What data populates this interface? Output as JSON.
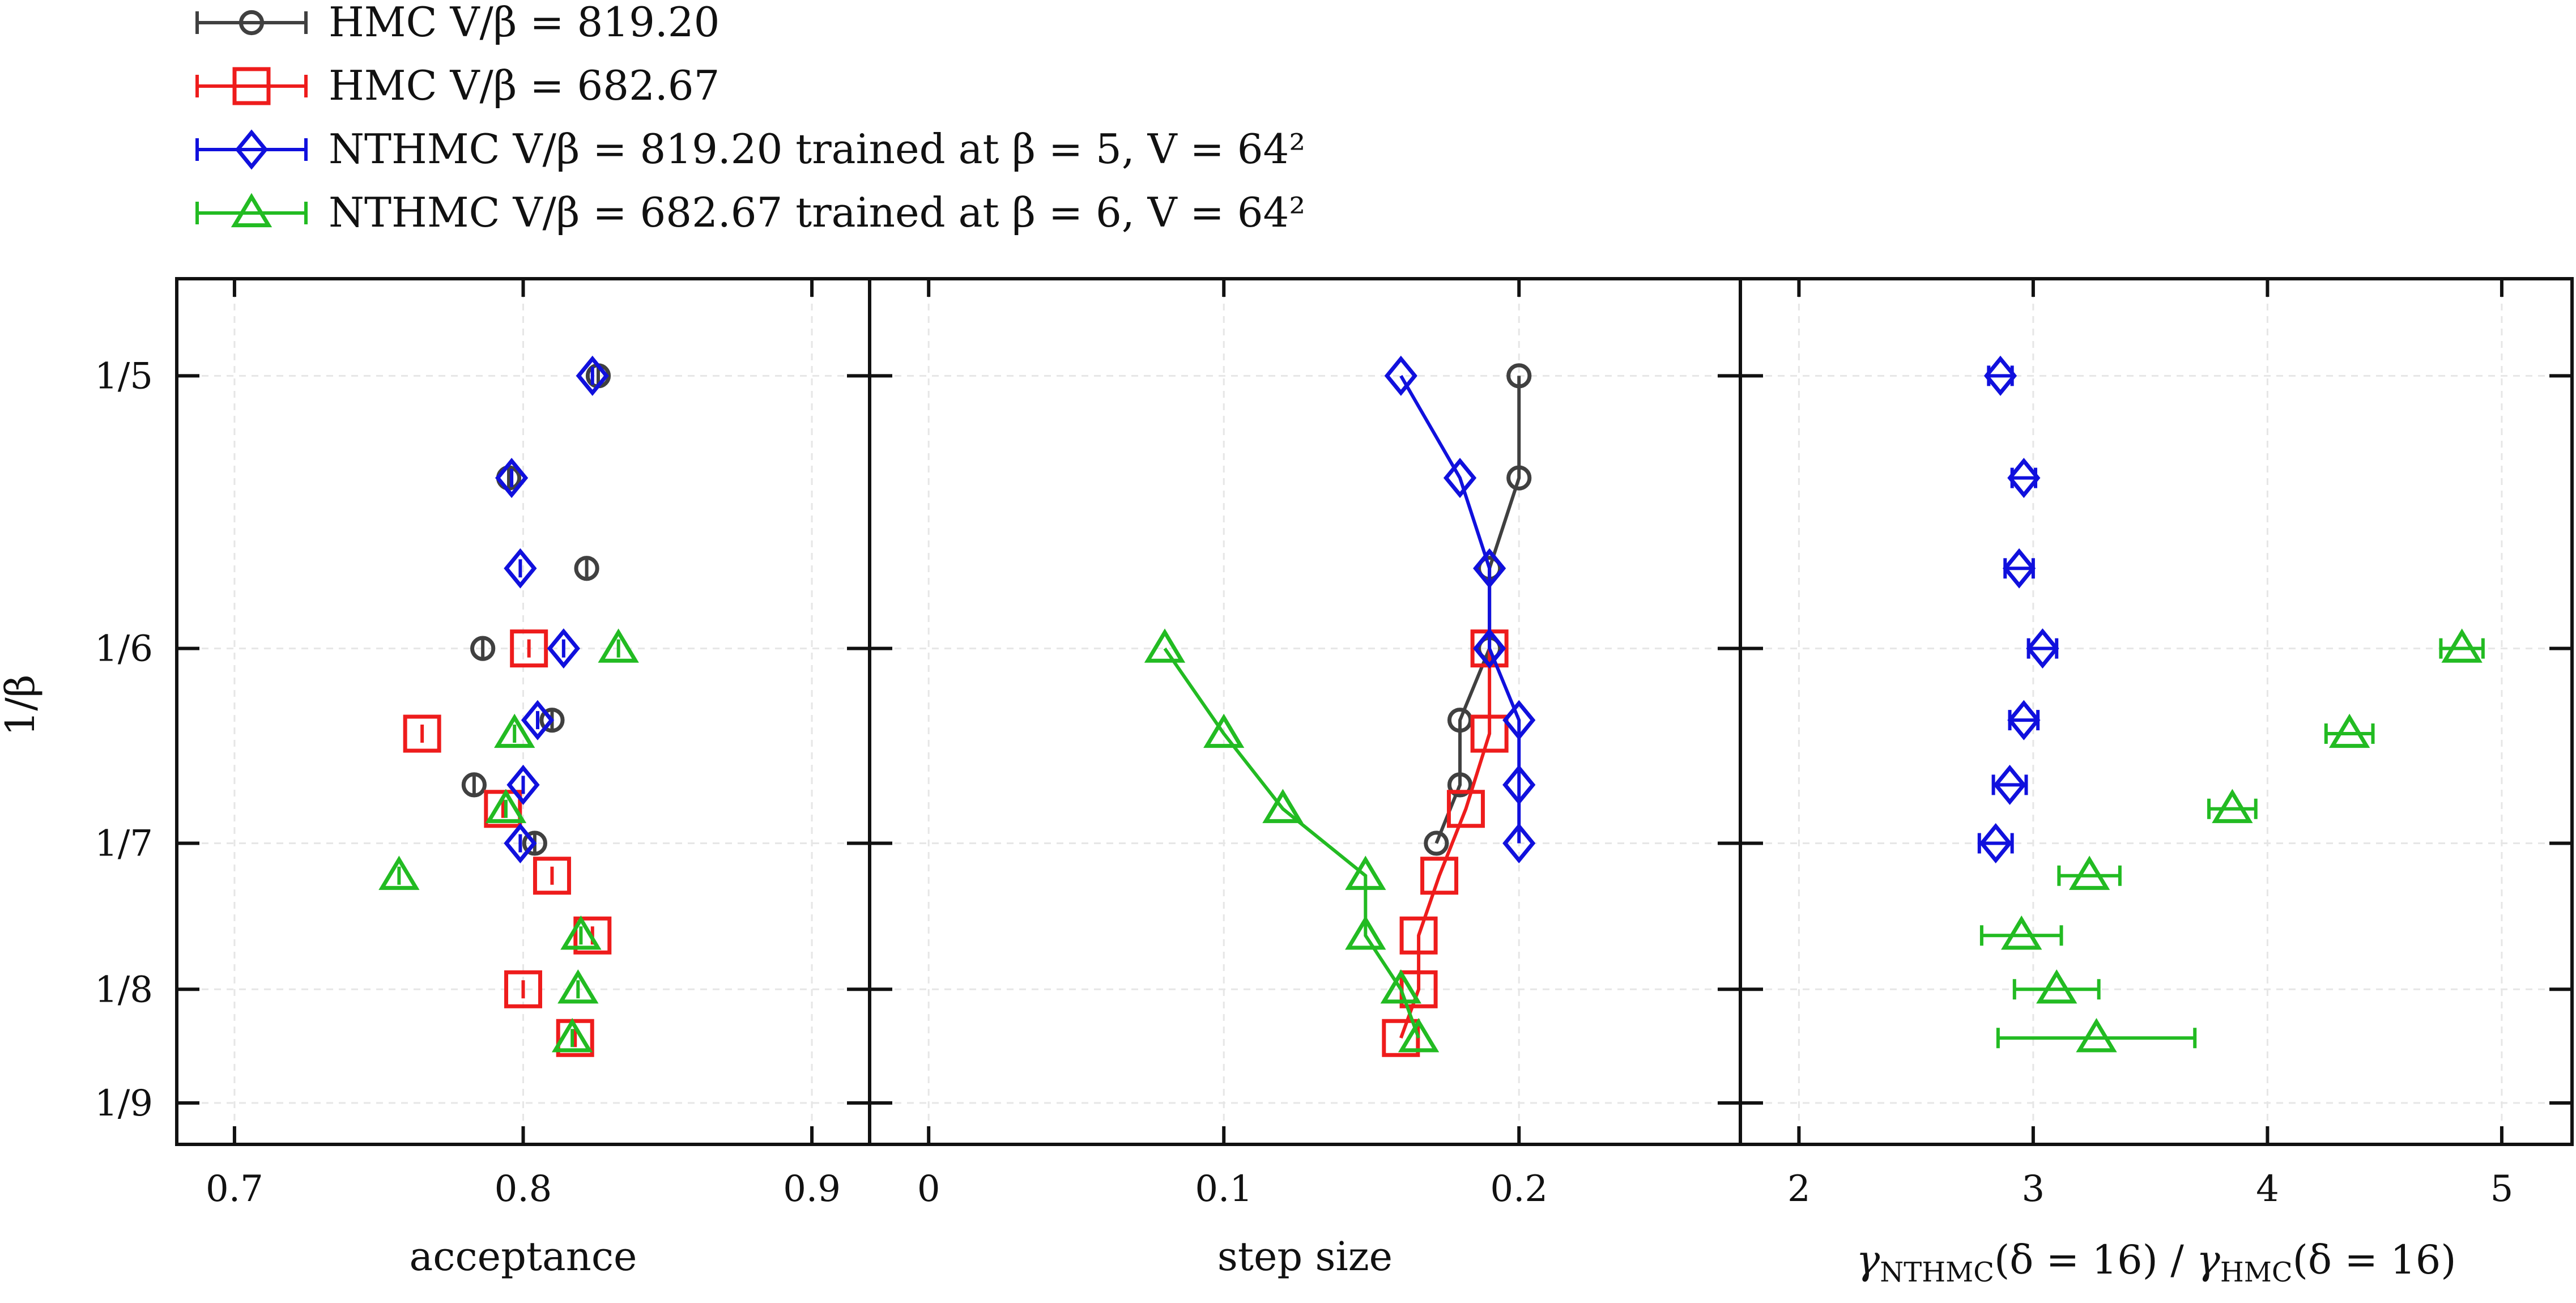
{
  "legend": [
    {
      "label": "HMC V/β = 819.20",
      "color": "#404040",
      "marker": "circle"
    },
    {
      "label": "HMC V/β = 682.67",
      "color": "#ee1c1c",
      "marker": "square"
    },
    {
      "label": "NTHMC V/β = 819.20 trained at β = 5, V = 64²",
      "color": "#1010dd",
      "marker": "diamond"
    },
    {
      "label": "NTHMC V/β = 682.67 trained at β = 6, V = 64²",
      "color": "#22bb22",
      "marker": "triangle"
    }
  ],
  "y_axis": {
    "label": "1/β",
    "tick_values": [
      5,
      6,
      7,
      8,
      9
    ],
    "tick_labels": [
      "1/5",
      "1/6",
      "1/7",
      "1/8",
      "1/9"
    ]
  },
  "chart_data": [
    {
      "type": "scatter",
      "xlabel": "acceptance",
      "ylabel": "1/β",
      "xlim": [
        0.68,
        0.92
      ],
      "xticks": [
        0.7,
        0.8,
        0.9
      ],
      "xtick_labels": [
        "0.7",
        "0.8",
        "0.9"
      ],
      "y_scale": "reciprocal (1/β)",
      "ylim_beta": [
        4.72,
        9.43
      ],
      "grid": true,
      "lines": false,
      "series": [
        {
          "name": "HMC V/β = 819.20",
          "color": "#404040",
          "marker": "circle",
          "points": [
            {
              "beta": 5,
              "x": 0.826
            },
            {
              "beta": 5.333,
              "x": 0.795
            },
            {
              "beta": 5.667,
              "x": 0.822
            },
            {
              "beta": 6,
              "x": 0.786
            },
            {
              "beta": 6.333,
              "x": 0.81
            },
            {
              "beta": 6.667,
              "x": 0.783
            },
            {
              "beta": 7,
              "x": 0.804
            }
          ]
        },
        {
          "name": "HMC V/β = 682.67",
          "color": "#ee1c1c",
          "marker": "square",
          "points": [
            {
              "beta": 6,
              "x": 0.802
            },
            {
              "beta": 6.4,
              "x": 0.765
            },
            {
              "beta": 6.8,
              "x": 0.793
            },
            {
              "beta": 7.2,
              "x": 0.81
            },
            {
              "beta": 7.6,
              "x": 0.824
            },
            {
              "beta": 8,
              "x": 0.8
            },
            {
              "beta": 8.4,
              "x": 0.818
            }
          ]
        },
        {
          "name": "NTHMC V/β = 819.20 trained at β = 5, V = 64²",
          "color": "#1010dd",
          "marker": "diamond",
          "points": [
            {
              "beta": 5,
              "x": 0.824
            },
            {
              "beta": 5.333,
              "x": 0.796
            },
            {
              "beta": 5.667,
              "x": 0.799
            },
            {
              "beta": 6,
              "x": 0.814
            },
            {
              "beta": 6.333,
              "x": 0.805
            },
            {
              "beta": 6.667,
              "x": 0.8
            },
            {
              "beta": 7,
              "x": 0.799
            }
          ]
        },
        {
          "name": "NTHMC V/β = 682.67 trained at β = 6, V = 64²",
          "color": "#22bb22",
          "marker": "triangle",
          "points": [
            {
              "beta": 6,
              "x": 0.833
            },
            {
              "beta": 6.4,
              "x": 0.797
            },
            {
              "beta": 6.8,
              "x": 0.794
            },
            {
              "beta": 7.2,
              "x": 0.757
            },
            {
              "beta": 7.6,
              "x": 0.82
            },
            {
              "beta": 8,
              "x": 0.819
            },
            {
              "beta": 8.4,
              "x": 0.817
            }
          ]
        }
      ]
    },
    {
      "type": "line",
      "xlabel": "step size",
      "ylabel": "1/β",
      "xlim": [
        -0.02,
        0.275
      ],
      "xticks": [
        0,
        0.1,
        0.2
      ],
      "xtick_labels": [
        "0",
        "0.1",
        "0.2"
      ],
      "y_scale": "reciprocal (1/β)",
      "ylim_beta": [
        4.72,
        9.43
      ],
      "grid": true,
      "lines": true,
      "series": [
        {
          "name": "HMC V/β = 819.20",
          "color": "#404040",
          "marker": "circle",
          "points": [
            {
              "beta": 5,
              "x": 0.2
            },
            {
              "beta": 5.333,
              "x": 0.2
            },
            {
              "beta": 5.667,
              "x": 0.19
            },
            {
              "beta": 6,
              "x": 0.19
            },
            {
              "beta": 6.333,
              "x": 0.18
            },
            {
              "beta": 6.667,
              "x": 0.18
            },
            {
              "beta": 7,
              "x": 0.172
            }
          ]
        },
        {
          "name": "HMC V/β = 682.67",
          "color": "#ee1c1c",
          "marker": "square",
          "points": [
            {
              "beta": 6,
              "x": 0.19
            },
            {
              "beta": 6.4,
              "x": 0.19
            },
            {
              "beta": 6.8,
              "x": 0.182
            },
            {
              "beta": 7.2,
              "x": 0.173
            },
            {
              "beta": 7.6,
              "x": 0.166
            },
            {
              "beta": 8,
              "x": 0.166
            },
            {
              "beta": 8.4,
              "x": 0.16
            }
          ]
        },
        {
          "name": "NTHMC V/β = 819.20 trained at β = 5, V = 64²",
          "color": "#1010dd",
          "marker": "diamond",
          "points": [
            {
              "beta": 5,
              "x": 0.16
            },
            {
              "beta": 5.333,
              "x": 0.18
            },
            {
              "beta": 5.667,
              "x": 0.19
            },
            {
              "beta": 6,
              "x": 0.19
            },
            {
              "beta": 6.333,
              "x": 0.2
            },
            {
              "beta": 6.667,
              "x": 0.2
            },
            {
              "beta": 7,
              "x": 0.2
            }
          ]
        },
        {
          "name": "NTHMC V/β = 682.67 trained at β = 6, V = 64²",
          "color": "#22bb22",
          "marker": "triangle",
          "points": [
            {
              "beta": 6,
              "x": 0.08
            },
            {
              "beta": 6.4,
              "x": 0.1
            },
            {
              "beta": 6.8,
              "x": 0.12
            },
            {
              "beta": 7.2,
              "x": 0.148
            },
            {
              "beta": 7.6,
              "x": 0.148
            },
            {
              "beta": 8,
              "x": 0.16
            },
            {
              "beta": 8.4,
              "x": 0.166
            }
          ]
        }
      ]
    },
    {
      "type": "scatter",
      "xlabel": "γNTHMC(δ = 16) / γHMC(δ = 16)",
      "xlabel_parts": {
        "num_base": "γ",
        "num_sub": "NTHMC",
        "num_arg": "(δ = 16)",
        "slash": "/",
        "den_base": "γ",
        "den_sub": "HMC",
        "den_arg": "(δ = 16)"
      },
      "ylabel": "1/β",
      "xlim": [
        1.75,
        5.3
      ],
      "xticks": [
        2,
        3,
        4,
        5
      ],
      "xtick_labels": [
        "2",
        "3",
        "4",
        "5"
      ],
      "y_scale": "reciprocal (1/β)",
      "ylim_beta": [
        4.72,
        9.43
      ],
      "grid": true,
      "lines": false,
      "series": [
        {
          "name": "NTHMC V/β = 819.20 trained at β = 5, V = 64²",
          "color": "#1010dd",
          "marker": "diamond",
          "points": [
            {
              "beta": 5,
              "x": 2.86,
              "xerr": 0.05
            },
            {
              "beta": 5.333,
              "x": 2.96,
              "xerr": 0.05
            },
            {
              "beta": 5.667,
              "x": 2.94,
              "xerr": 0.06
            },
            {
              "beta": 6,
              "x": 3.04,
              "xerr": 0.06
            },
            {
              "beta": 6.333,
              "x": 2.96,
              "xerr": 0.06
            },
            {
              "beta": 6.667,
              "x": 2.9,
              "xerr": 0.07
            },
            {
              "beta": 7,
              "x": 2.84,
              "xerr": 0.07
            }
          ]
        },
        {
          "name": "NTHMC V/β = 682.67 trained at β = 6, V = 64²",
          "color": "#22bb22",
          "marker": "triangle",
          "points": [
            {
              "beta": 6,
              "x": 4.83,
              "xerr": 0.09
            },
            {
              "beta": 6.4,
              "x": 4.35,
              "xerr": 0.1
            },
            {
              "beta": 6.8,
              "x": 3.85,
              "xerr": 0.1
            },
            {
              "beta": 7.2,
              "x": 3.24,
              "xerr": 0.13
            },
            {
              "beta": 7.6,
              "x": 2.95,
              "xerr": 0.17
            },
            {
              "beta": 8,
              "x": 3.1,
              "xerr": 0.18
            },
            {
              "beta": 8.4,
              "x": 3.27,
              "xerr": 0.42
            }
          ]
        }
      ]
    }
  ]
}
